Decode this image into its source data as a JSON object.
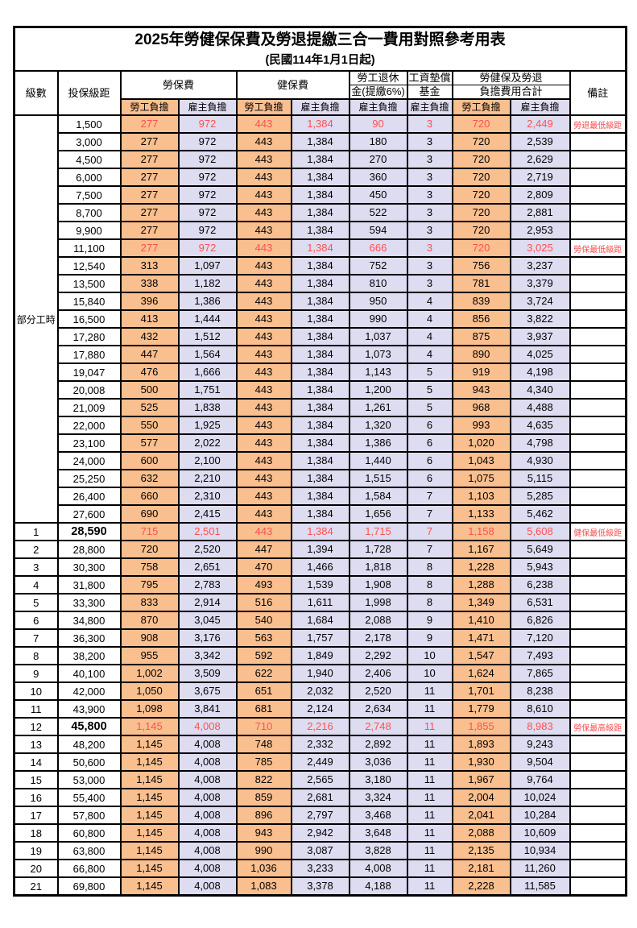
{
  "title": "2025年勞健保保費及勞退提繳三合一費用對照參考用表",
  "subtitle": "(民國114年1月1日起)",
  "header": {
    "level": "級數",
    "bracket": "投保級距",
    "labor_insurance": "勞保費",
    "health_insurance": "健保費",
    "pension_line1": "勞工退休",
    "pension_line2": "金(提繳6%)",
    "wage_fund_line1": "工資墊償",
    "wage_fund_line2": "基金",
    "total_line1": "勞健保及勞退",
    "total_line2": "負擔費用合計",
    "note": "備註",
    "employee": "勞工負擔",
    "employer": "雇主負擔"
  },
  "colors": {
    "employee_bg": "#FABF8F",
    "employer_bg": "#DEDCF0",
    "highlight_red": "#FF5050",
    "note_red": "#FF4A4A",
    "border": "#000000"
  },
  "part_time_label": "部分工時",
  "rows": [
    {
      "level": "部分工時",
      "levelRowspan": 23,
      "bracket": "1,500",
      "v": [
        "277",
        "972",
        "443",
        "1,384",
        "90",
        "3",
        "720",
        "2,449"
      ],
      "note": "勞退最低級距",
      "red": true
    },
    {
      "bracket": "3,000",
      "v": [
        "277",
        "972",
        "443",
        "1,384",
        "180",
        "3",
        "720",
        "2,539"
      ]
    },
    {
      "bracket": "4,500",
      "v": [
        "277",
        "972",
        "443",
        "1,384",
        "270",
        "3",
        "720",
        "2,629"
      ]
    },
    {
      "bracket": "6,000",
      "v": [
        "277",
        "972",
        "443",
        "1,384",
        "360",
        "3",
        "720",
        "2,719"
      ]
    },
    {
      "bracket": "7,500",
      "v": [
        "277",
        "972",
        "443",
        "1,384",
        "450",
        "3",
        "720",
        "2,809"
      ]
    },
    {
      "bracket": "8,700",
      "v": [
        "277",
        "972",
        "443",
        "1,384",
        "522",
        "3",
        "720",
        "2,881"
      ]
    },
    {
      "bracket": "9,900",
      "v": [
        "277",
        "972",
        "443",
        "1,384",
        "594",
        "3",
        "720",
        "2,953"
      ]
    },
    {
      "bracket": "11,100",
      "v": [
        "277",
        "972",
        "443",
        "1,384",
        "666",
        "3",
        "720",
        "3,025"
      ],
      "note": "勞保最低級距",
      "red": true
    },
    {
      "bracket": "12,540",
      "v": [
        "313",
        "1,097",
        "443",
        "1,384",
        "752",
        "3",
        "756",
        "3,237"
      ]
    },
    {
      "bracket": "13,500",
      "v": [
        "338",
        "1,182",
        "443",
        "1,384",
        "810",
        "3",
        "781",
        "3,379"
      ]
    },
    {
      "bracket": "15,840",
      "v": [
        "396",
        "1,386",
        "443",
        "1,384",
        "950",
        "4",
        "839",
        "3,724"
      ]
    },
    {
      "bracket": "16,500",
      "v": [
        "413",
        "1,444",
        "443",
        "1,384",
        "990",
        "4",
        "856",
        "3,822"
      ]
    },
    {
      "bracket": "17,280",
      "v": [
        "432",
        "1,512",
        "443",
        "1,384",
        "1,037",
        "4",
        "875",
        "3,937"
      ]
    },
    {
      "bracket": "17,880",
      "v": [
        "447",
        "1,564",
        "443",
        "1,384",
        "1,073",
        "4",
        "890",
        "4,025"
      ]
    },
    {
      "bracket": "19,047",
      "v": [
        "476",
        "1,666",
        "443",
        "1,384",
        "1,143",
        "5",
        "919",
        "4,198"
      ]
    },
    {
      "bracket": "20,008",
      "v": [
        "500",
        "1,751",
        "443",
        "1,384",
        "1,200",
        "5",
        "943",
        "4,340"
      ]
    },
    {
      "bracket": "21,009",
      "v": [
        "525",
        "1,838",
        "443",
        "1,384",
        "1,261",
        "5",
        "968",
        "4,488"
      ]
    },
    {
      "bracket": "22,000",
      "v": [
        "550",
        "1,925",
        "443",
        "1,384",
        "1,320",
        "6",
        "993",
        "4,635"
      ]
    },
    {
      "bracket": "23,100",
      "v": [
        "577",
        "2,022",
        "443",
        "1,384",
        "1,386",
        "6",
        "1,020",
        "4,798"
      ]
    },
    {
      "bracket": "24,000",
      "v": [
        "600",
        "2,100",
        "443",
        "1,384",
        "1,440",
        "6",
        "1,043",
        "4,930"
      ]
    },
    {
      "bracket": "25,250",
      "v": [
        "632",
        "2,210",
        "443",
        "1,384",
        "1,515",
        "6",
        "1,075",
        "5,115"
      ]
    },
    {
      "bracket": "26,400",
      "v": [
        "660",
        "2,310",
        "443",
        "1,384",
        "1,584",
        "7",
        "1,103",
        "5,285"
      ]
    },
    {
      "bracket": "27,600",
      "v": [
        "690",
        "2,415",
        "443",
        "1,384",
        "1,656",
        "7",
        "1,133",
        "5,462"
      ]
    },
    {
      "level": "1",
      "bracket": "28,590",
      "bold": true,
      "v": [
        "715",
        "2,501",
        "443",
        "1,384",
        "1,715",
        "7",
        "1,158",
        "5,608"
      ],
      "note": "健保最低級距",
      "red": true
    },
    {
      "level": "2",
      "bracket": "28,800",
      "v": [
        "720",
        "2,520",
        "447",
        "1,394",
        "1,728",
        "7",
        "1,167",
        "5,649"
      ]
    },
    {
      "level": "3",
      "bracket": "30,300",
      "v": [
        "758",
        "2,651",
        "470",
        "1,466",
        "1,818",
        "8",
        "1,228",
        "5,943"
      ]
    },
    {
      "level": "4",
      "bracket": "31,800",
      "v": [
        "795",
        "2,783",
        "493",
        "1,539",
        "1,908",
        "8",
        "1,288",
        "6,238"
      ]
    },
    {
      "level": "5",
      "bracket": "33,300",
      "v": [
        "833",
        "2,914",
        "516",
        "1,611",
        "1,998",
        "8",
        "1,349",
        "6,531"
      ]
    },
    {
      "level": "6",
      "bracket": "34,800",
      "v": [
        "870",
        "3,045",
        "540",
        "1,684",
        "2,088",
        "9",
        "1,410",
        "6,826"
      ]
    },
    {
      "level": "7",
      "bracket": "36,300",
      "v": [
        "908",
        "3,176",
        "563",
        "1,757",
        "2,178",
        "9",
        "1,471",
        "7,120"
      ]
    },
    {
      "level": "8",
      "bracket": "38,200",
      "v": [
        "955",
        "3,342",
        "592",
        "1,849",
        "2,292",
        "10",
        "1,547",
        "7,493"
      ]
    },
    {
      "level": "9",
      "bracket": "40,100",
      "v": [
        "1,002",
        "3,509",
        "622",
        "1,940",
        "2,406",
        "10",
        "1,624",
        "7,865"
      ]
    },
    {
      "level": "10",
      "bracket": "42,000",
      "v": [
        "1,050",
        "3,675",
        "651",
        "2,032",
        "2,520",
        "11",
        "1,701",
        "8,238"
      ]
    },
    {
      "level": "11",
      "bracket": "43,900",
      "v": [
        "1,098",
        "3,841",
        "681",
        "2,124",
        "2,634",
        "11",
        "1,779",
        "8,610"
      ]
    },
    {
      "level": "12",
      "bracket": "45,800",
      "bold": true,
      "v": [
        "1,145",
        "4,008",
        "710",
        "2,216",
        "2,748",
        "11",
        "1,855",
        "8,983"
      ],
      "note": "勞保最高級距",
      "red": true
    },
    {
      "level": "13",
      "bracket": "48,200",
      "v": [
        "1,145",
        "4,008",
        "748",
        "2,332",
        "2,892",
        "11",
        "1,893",
        "9,243"
      ]
    },
    {
      "level": "14",
      "bracket": "50,600",
      "v": [
        "1,145",
        "4,008",
        "785",
        "2,449",
        "3,036",
        "11",
        "1,930",
        "9,504"
      ]
    },
    {
      "level": "15",
      "bracket": "53,000",
      "v": [
        "1,145",
        "4,008",
        "822",
        "2,565",
        "3,180",
        "11",
        "1,967",
        "9,764"
      ]
    },
    {
      "level": "16",
      "bracket": "55,400",
      "v": [
        "1,145",
        "4,008",
        "859",
        "2,681",
        "3,324",
        "11",
        "2,004",
        "10,024"
      ]
    },
    {
      "level": "17",
      "bracket": "57,800",
      "v": [
        "1,145",
        "4,008",
        "896",
        "2,797",
        "3,468",
        "11",
        "2,041",
        "10,284"
      ]
    },
    {
      "level": "18",
      "bracket": "60,800",
      "v": [
        "1,145",
        "4,008",
        "943",
        "2,942",
        "3,648",
        "11",
        "2,088",
        "10,609"
      ]
    },
    {
      "level": "19",
      "bracket": "63,800",
      "v": [
        "1,145",
        "4,008",
        "990",
        "3,087",
        "3,828",
        "11",
        "2,135",
        "10,934"
      ]
    },
    {
      "level": "20",
      "bracket": "66,800",
      "v": [
        "1,145",
        "4,008",
        "1,036",
        "3,233",
        "4,008",
        "11",
        "2,181",
        "11,260"
      ]
    },
    {
      "level": "21",
      "bracket": "69,800",
      "v": [
        "1,145",
        "4,008",
        "1,083",
        "3,378",
        "4,188",
        "11",
        "2,228",
        "11,585"
      ]
    }
  ]
}
